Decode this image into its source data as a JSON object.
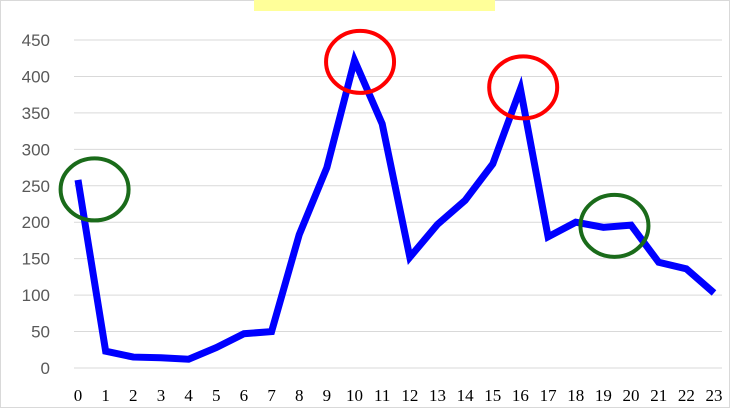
{
  "chart_data": {
    "type": "line",
    "title": "",
    "xlabel": "",
    "ylabel": "",
    "x": [
      0,
      1,
      2,
      3,
      4,
      5,
      6,
      7,
      8,
      9,
      10,
      11,
      12,
      13,
      14,
      15,
      16,
      17,
      18,
      19,
      20,
      21,
      22,
      23
    ],
    "series": [
      {
        "values": [
          258,
          23,
          15,
          14,
          12,
          28,
          47,
          50,
          183,
          275,
          422,
          335,
          152,
          197,
          230,
          280,
          383,
          180,
          200,
          193,
          196,
          145,
          136,
          103
        ],
        "color": "#0000ff"
      }
    ],
    "ylim": [
      0,
      450
    ],
    "yticks": [
      0,
      50,
      100,
      150,
      200,
      250,
      300,
      350,
      400,
      450
    ],
    "grid": true,
    "legend": "none",
    "annotations": [
      {
        "type": "circle",
        "x": 0.6,
        "y": 245,
        "color": "#1a6b1a"
      },
      {
        "type": "circle",
        "x": 10.2,
        "y": 420,
        "color": "#ff0000"
      },
      {
        "type": "circle",
        "x": 16.1,
        "y": 385,
        "color": "#ff0000"
      },
      {
        "type": "circle",
        "x": 19.4,
        "y": 195,
        "color": "#1a6b1a"
      }
    ],
    "title_box_color": "#ffff99"
  }
}
